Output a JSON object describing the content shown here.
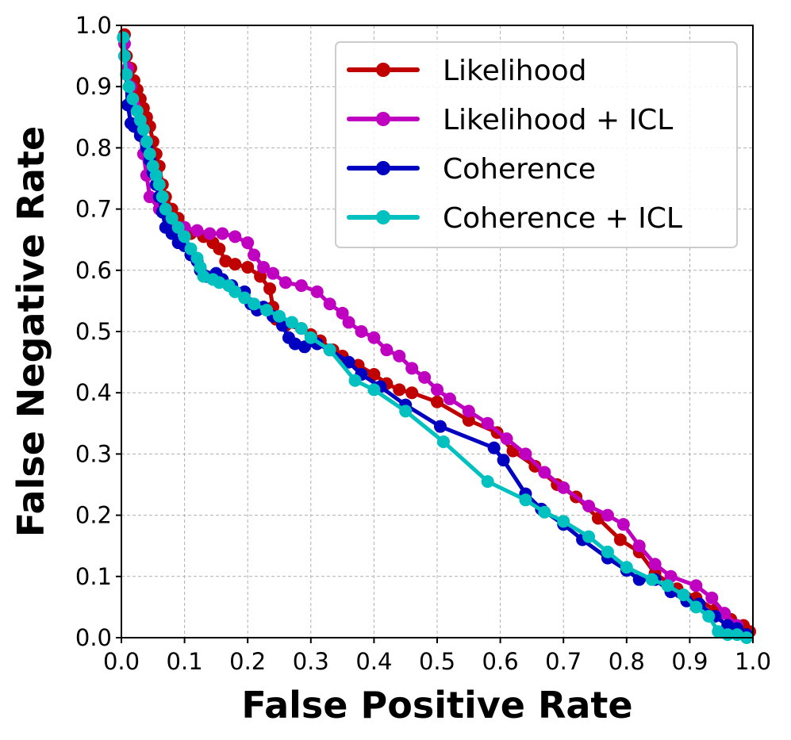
{
  "chart_data": {
    "type": "line",
    "xlabel": "False Positive Rate",
    "ylabel": "False Negative Rate",
    "xlim": [
      0.0,
      1.0
    ],
    "ylim": [
      0.0,
      1.0
    ],
    "xticks": [
      "0.0",
      "0.1",
      "0.2",
      "0.3",
      "0.4",
      "0.5",
      "0.6",
      "0.7",
      "0.8",
      "0.9",
      "1.0"
    ],
    "yticks": [
      "0.0",
      "0.1",
      "0.2",
      "0.3",
      "0.4",
      "0.5",
      "0.6",
      "0.7",
      "0.8",
      "0.9",
      "1.0"
    ],
    "grid": true,
    "legend_position": "top-right",
    "series": [
      {
        "name": "Likelihood",
        "color": "#c00000",
        "points": [
          [
            0.005,
            0.985
          ],
          [
            0.008,
            0.95
          ],
          [
            0.015,
            0.93
          ],
          [
            0.02,
            0.91
          ],
          [
            0.025,
            0.895
          ],
          [
            0.03,
            0.88
          ],
          [
            0.035,
            0.865
          ],
          [
            0.04,
            0.85
          ],
          [
            0.045,
            0.835
          ],
          [
            0.05,
            0.81
          ],
          [
            0.055,
            0.79
          ],
          [
            0.06,
            0.77
          ],
          [
            0.065,
            0.74
          ],
          [
            0.07,
            0.72
          ],
          [
            0.08,
            0.7
          ],
          [
            0.09,
            0.685
          ],
          [
            0.1,
            0.67
          ],
          [
            0.11,
            0.66
          ],
          [
            0.13,
            0.655
          ],
          [
            0.145,
            0.645
          ],
          [
            0.155,
            0.635
          ],
          [
            0.165,
            0.615
          ],
          [
            0.18,
            0.61
          ],
          [
            0.2,
            0.605
          ],
          [
            0.22,
            0.59
          ],
          [
            0.235,
            0.57
          ],
          [
            0.24,
            0.54
          ],
          [
            0.245,
            0.52
          ],
          [
            0.26,
            0.51
          ],
          [
            0.285,
            0.505
          ],
          [
            0.3,
            0.495
          ],
          [
            0.315,
            0.485
          ],
          [
            0.335,
            0.47
          ],
          [
            0.35,
            0.46
          ],
          [
            0.375,
            0.445
          ],
          [
            0.4,
            0.43
          ],
          [
            0.42,
            0.415
          ],
          [
            0.44,
            0.405
          ],
          [
            0.46,
            0.4
          ],
          [
            0.5,
            0.385
          ],
          [
            0.55,
            0.355
          ],
          [
            0.595,
            0.335
          ],
          [
            0.62,
            0.305
          ],
          [
            0.655,
            0.28
          ],
          [
            0.69,
            0.25
          ],
          [
            0.72,
            0.23
          ],
          [
            0.755,
            0.195
          ],
          [
            0.79,
            0.16
          ],
          [
            0.82,
            0.14
          ],
          [
            0.845,
            0.105
          ],
          [
            0.88,
            0.08
          ],
          [
            0.91,
            0.065
          ],
          [
            0.94,
            0.045
          ],
          [
            0.965,
            0.03
          ],
          [
            0.985,
            0.02
          ],
          [
            0.995,
            0.01
          ]
        ]
      },
      {
        "name": "Likelihood + ICL",
        "color": "#c000c0",
        "points": [
          [
            0.005,
            0.97
          ],
          [
            0.01,
            0.93
          ],
          [
            0.015,
            0.9
          ],
          [
            0.02,
            0.87
          ],
          [
            0.028,
            0.83
          ],
          [
            0.035,
            0.79
          ],
          [
            0.04,
            0.755
          ],
          [
            0.045,
            0.72
          ],
          [
            0.06,
            0.7
          ],
          [
            0.08,
            0.68
          ],
          [
            0.1,
            0.67
          ],
          [
            0.12,
            0.665
          ],
          [
            0.14,
            0.66
          ],
          [
            0.16,
            0.66
          ],
          [
            0.18,
            0.655
          ],
          [
            0.2,
            0.645
          ],
          [
            0.21,
            0.625
          ],
          [
            0.225,
            0.605
          ],
          [
            0.24,
            0.595
          ],
          [
            0.26,
            0.58
          ],
          [
            0.285,
            0.575
          ],
          [
            0.31,
            0.565
          ],
          [
            0.33,
            0.545
          ],
          [
            0.35,
            0.53
          ],
          [
            0.36,
            0.515
          ],
          [
            0.38,
            0.5
          ],
          [
            0.4,
            0.49
          ],
          [
            0.42,
            0.47
          ],
          [
            0.44,
            0.46
          ],
          [
            0.46,
            0.44
          ],
          [
            0.48,
            0.425
          ],
          [
            0.5,
            0.405
          ],
          [
            0.52,
            0.39
          ],
          [
            0.55,
            0.37
          ],
          [
            0.58,
            0.35
          ],
          [
            0.61,
            0.325
          ],
          [
            0.64,
            0.3
          ],
          [
            0.67,
            0.27
          ],
          [
            0.7,
            0.245
          ],
          [
            0.74,
            0.215
          ],
          [
            0.77,
            0.2
          ],
          [
            0.795,
            0.185
          ],
          [
            0.82,
            0.15
          ],
          [
            0.845,
            0.12
          ],
          [
            0.87,
            0.1
          ],
          [
            0.91,
            0.085
          ],
          [
            0.935,
            0.065
          ],
          [
            0.955,
            0.04
          ],
          [
            0.975,
            0.02
          ],
          [
            0.99,
            0.005
          ]
        ]
      },
      {
        "name": "Coherence",
        "color": "#0000c0",
        "points": [
          [
            0.003,
            0.98
          ],
          [
            0.005,
            0.95
          ],
          [
            0.008,
            0.92
          ],
          [
            0.01,
            0.87
          ],
          [
            0.015,
            0.84
          ],
          [
            0.02,
            0.835
          ],
          [
            0.03,
            0.82
          ],
          [
            0.04,
            0.8
          ],
          [
            0.045,
            0.78
          ],
          [
            0.05,
            0.76
          ],
          [
            0.055,
            0.74
          ],
          [
            0.06,
            0.72
          ],
          [
            0.065,
            0.695
          ],
          [
            0.07,
            0.67
          ],
          [
            0.08,
            0.66
          ],
          [
            0.09,
            0.645
          ],
          [
            0.1,
            0.64
          ],
          [
            0.11,
            0.625
          ],
          [
            0.12,
            0.615
          ],
          [
            0.125,
            0.6
          ],
          [
            0.135,
            0.59
          ],
          [
            0.15,
            0.595
          ],
          [
            0.16,
            0.585
          ],
          [
            0.175,
            0.575
          ],
          [
            0.195,
            0.565
          ],
          [
            0.205,
            0.545
          ],
          [
            0.215,
            0.535
          ],
          [
            0.225,
            0.54
          ],
          [
            0.24,
            0.525
          ],
          [
            0.255,
            0.51
          ],
          [
            0.265,
            0.49
          ],
          [
            0.275,
            0.48
          ],
          [
            0.29,
            0.475
          ],
          [
            0.31,
            0.48
          ],
          [
            0.33,
            0.47
          ],
          [
            0.36,
            0.45
          ],
          [
            0.38,
            0.43
          ],
          [
            0.41,
            0.41
          ],
          [
            0.45,
            0.38
          ],
          [
            0.505,
            0.345
          ],
          [
            0.59,
            0.31
          ],
          [
            0.605,
            0.29
          ],
          [
            0.64,
            0.235
          ],
          [
            0.665,
            0.21
          ],
          [
            0.7,
            0.185
          ],
          [
            0.73,
            0.16
          ],
          [
            0.77,
            0.13
          ],
          [
            0.8,
            0.11
          ],
          [
            0.82,
            0.095
          ],
          [
            0.845,
            0.095
          ],
          [
            0.87,
            0.075
          ],
          [
            0.895,
            0.06
          ],
          [
            0.915,
            0.055
          ],
          [
            0.94,
            0.035
          ],
          [
            0.96,
            0.02
          ],
          [
            0.975,
            0.015
          ],
          [
            0.99,
            0.005
          ]
        ]
      },
      {
        "name": "Coherence + ICL",
        "color": "#00c0c0",
        "points": [
          [
            0.003,
            0.98
          ],
          [
            0.005,
            0.95
          ],
          [
            0.008,
            0.92
          ],
          [
            0.012,
            0.9
          ],
          [
            0.018,
            0.88
          ],
          [
            0.025,
            0.86
          ],
          [
            0.03,
            0.845
          ],
          [
            0.035,
            0.83
          ],
          [
            0.04,
            0.81
          ],
          [
            0.045,
            0.79
          ],
          [
            0.05,
            0.77
          ],
          [
            0.055,
            0.755
          ],
          [
            0.06,
            0.74
          ],
          [
            0.065,
            0.72
          ],
          [
            0.07,
            0.7
          ],
          [
            0.08,
            0.685
          ],
          [
            0.09,
            0.67
          ],
          [
            0.1,
            0.655
          ],
          [
            0.11,
            0.635
          ],
          [
            0.12,
            0.62
          ],
          [
            0.125,
            0.605
          ],
          [
            0.13,
            0.59
          ],
          [
            0.145,
            0.585
          ],
          [
            0.155,
            0.58
          ],
          [
            0.17,
            0.575
          ],
          [
            0.18,
            0.565
          ],
          [
            0.195,
            0.555
          ],
          [
            0.21,
            0.545
          ],
          [
            0.23,
            0.535
          ],
          [
            0.25,
            0.525
          ],
          [
            0.27,
            0.515
          ],
          [
            0.285,
            0.505
          ],
          [
            0.3,
            0.49
          ],
          [
            0.33,
            0.47
          ],
          [
            0.37,
            0.42
          ],
          [
            0.4,
            0.405
          ],
          [
            0.45,
            0.37
          ],
          [
            0.51,
            0.32
          ],
          [
            0.58,
            0.255
          ],
          [
            0.64,
            0.225
          ],
          [
            0.67,
            0.205
          ],
          [
            0.7,
            0.19
          ],
          [
            0.74,
            0.165
          ],
          [
            0.77,
            0.14
          ],
          [
            0.8,
            0.115
          ],
          [
            0.84,
            0.095
          ],
          [
            0.865,
            0.085
          ],
          [
            0.89,
            0.07
          ],
          [
            0.91,
            0.05
          ],
          [
            0.93,
            0.035
          ],
          [
            0.945,
            0.01
          ],
          [
            0.96,
            0.005
          ],
          [
            0.975,
            0.005
          ],
          [
            0.99,
            0.0
          ]
        ]
      }
    ]
  }
}
